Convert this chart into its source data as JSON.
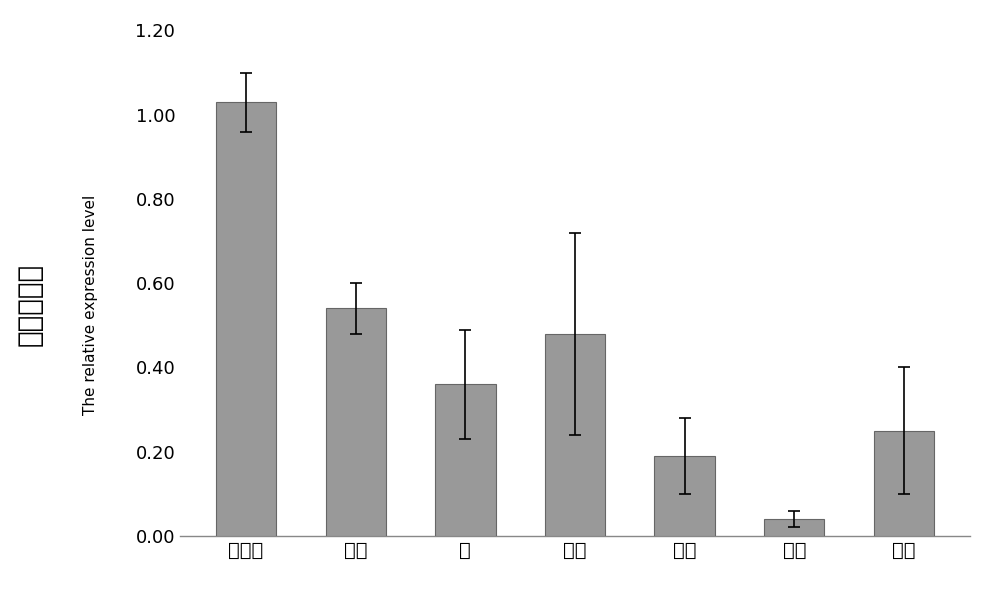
{
  "categories": [
    "成熟叶",
    "娩叶",
    "茎",
    "落片",
    "花瓣",
    "雄蕊",
    "雌蕊"
  ],
  "values": [
    1.03,
    0.54,
    0.36,
    0.48,
    0.19,
    0.04,
    0.25
  ],
  "errors": [
    0.07,
    0.06,
    0.13,
    0.24,
    0.09,
    0.02,
    0.15
  ],
  "bar_color": "#999999",
  "bar_edgecolor": "#666666",
  "ylim": [
    0,
    1.2
  ],
  "yticks": [
    0.0,
    0.2,
    0.4,
    0.6,
    0.8,
    1.0,
    1.2
  ],
  "ylabel_chinese": "相对表达量",
  "ylabel_english": "The relative expression level",
  "background_color": "#ffffff",
  "bar_width": 0.55,
  "errorbar_capsize": 4,
  "errorbar_linewidth": 1.2,
  "errorbar_color": "#000000",
  "tick_fontsize": 13,
  "chinese_fontsize": 20,
  "english_fontsize": 11,
  "xtick_fontsize": 14
}
